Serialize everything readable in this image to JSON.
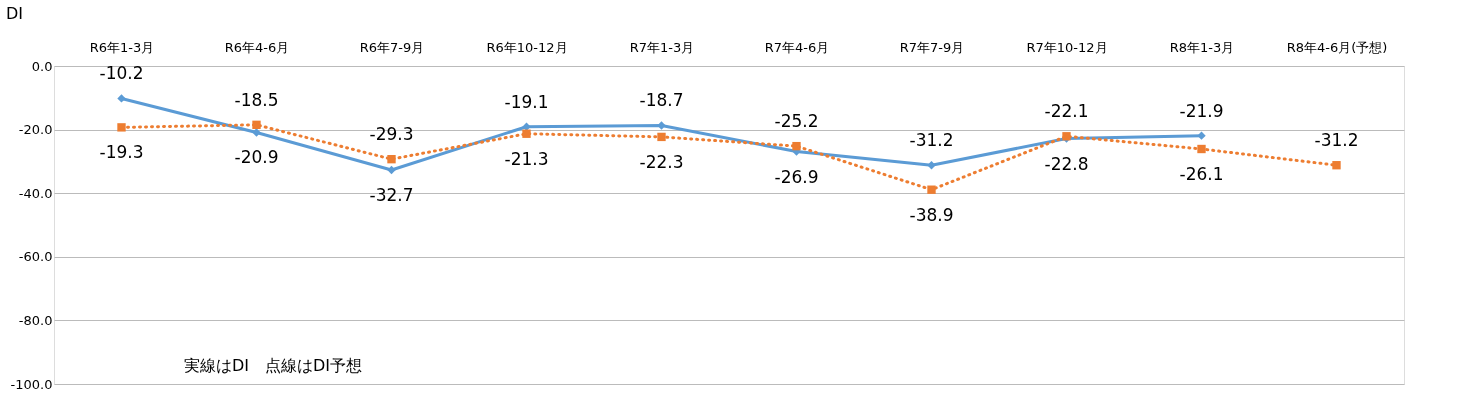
{
  "chart_data": {
    "type": "line",
    "categories": [
      "R6年1-3月",
      "R6年4-6月",
      "R6年7-9月",
      "R6年10-12月",
      "R7年1-3月",
      "R7年4-6月",
      "R7年7-9月",
      "R7年10-12月",
      "R8年1-3月",
      "R8年4-6月(予想)"
    ],
    "series": [
      {
        "color": "#5b9bd5",
        "marker": "diamond",
        "line_style": "solid",
        "values": [
          -10.2,
          -20.9,
          -32.7,
          -19.1,
          -18.7,
          -26.9,
          -31.2,
          -22.8,
          -21.9,
          null
        ]
      },
      {
        "color": "#ed7d31",
        "marker": "square",
        "line_style": "dotted",
        "values": [
          -19.3,
          -18.5,
          -29.3,
          -21.3,
          -22.3,
          -25.2,
          -38.9,
          -22.1,
          -26.1,
          -31.2
        ]
      }
    ],
    "ylabel": "DI",
    "ylim": [
      -100,
      0
    ],
    "yticks": [
      {
        "value": -100,
        "label": "-100.0"
      },
      {
        "value": -80,
        "label": "-80.0"
      },
      {
        "value": -60,
        "label": "-60.0"
      },
      {
        "value": -40,
        "label": "-40.0"
      },
      {
        "value": -20,
        "label": "-20.0"
      },
      {
        "value": 0,
        "label": "0.0"
      }
    ],
    "grid": "y",
    "data_labels": true,
    "annotations": [
      "実線はDI　点線はDI予想"
    ]
  }
}
